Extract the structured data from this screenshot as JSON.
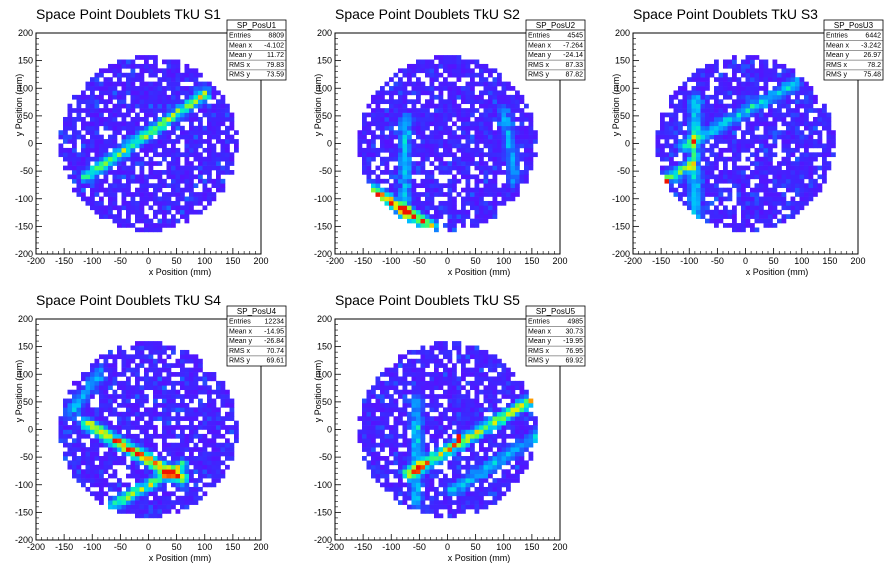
{
  "chart_data": [
    {
      "type": "heatmap",
      "title": "Space Point Doublets TkU S1",
      "xlabel": "x Position (mm)",
      "ylabel": "y Position (mm)",
      "xlim": [
        -200,
        200
      ],
      "ylim": [
        -200,
        200
      ],
      "xticks": [
        "-200",
        "-150",
        "-100",
        "-50",
        "0",
        "50",
        "100",
        "150",
        "200"
      ],
      "yticks": [
        "-200",
        "-150",
        "-100",
        "-50",
        "0",
        "50",
        "100",
        "150",
        "200"
      ],
      "circle_radius": 160,
      "stats": {
        "name": "SP_PosU1",
        "rows": [
          {
            "label": "Entries",
            "value": "8809"
          },
          {
            "label": "Mean x",
            "value": "-4.102"
          },
          {
            "label": "Mean y",
            "value": "11.72"
          },
          {
            "label": "RMS x",
            "value": "79.83"
          },
          {
            "label": "RMS y",
            "value": "73.59"
          }
        ]
      },
      "features": [
        {
          "kind": "stripe",
          "from": [
            -110,
            -60
          ],
          "to": [
            100,
            90
          ],
          "peak": 0.6
        }
      ]
    },
    {
      "type": "heatmap",
      "title": "Space Point Doublets TkU S2",
      "xlabel": "x Position (mm)",
      "ylabel": "y Position (mm)",
      "xlim": [
        -200,
        200
      ],
      "ylim": [
        -200,
        200
      ],
      "xticks": [
        "-200",
        "-150",
        "-100",
        "-50",
        "0",
        "50",
        "100",
        "150",
        "200"
      ],
      "yticks": [
        "-200",
        "-150",
        "-100",
        "-50",
        "0",
        "50",
        "100",
        "150",
        "200"
      ],
      "circle_radius": 160,
      "stats": {
        "name": "SP_PosU2",
        "rows": [
          {
            "label": "Entries",
            "value": "4545"
          },
          {
            "label": "Mean x",
            "value": "-7.264"
          },
          {
            "label": "Mean y",
            "value": "-24.14"
          },
          {
            "label": "RMS x",
            "value": "87.33"
          },
          {
            "label": "RMS y",
            "value": "87.82"
          }
        ]
      },
      "features": [
        {
          "kind": "stripe",
          "from": [
            -140,
            -80
          ],
          "to": [
            -30,
            -150
          ],
          "peak": 0.85
        },
        {
          "kind": "stripe",
          "from": [
            -75,
            40
          ],
          "to": [
            -75,
            -140
          ],
          "peak": 0.35
        },
        {
          "kind": "stripe",
          "from": [
            100,
            60
          ],
          "to": [
            120,
            -60
          ],
          "peak": 0.3
        }
      ]
    },
    {
      "type": "heatmap",
      "title": "Space Point Doublets TkU S3",
      "xlabel": "x Position (mm)",
      "ylabel": "y Position (mm)",
      "xlim": [
        -200,
        200
      ],
      "ylim": [
        -200,
        200
      ],
      "xticks": [
        "-200",
        "-150",
        "-100",
        "-50",
        "0",
        "50",
        "100",
        "150",
        "200"
      ],
      "yticks": [
        "-200",
        "-150",
        "-100",
        "-50",
        "0",
        "50",
        "100",
        "150",
        "200"
      ],
      "circle_radius": 160,
      "stats": {
        "name": "SP_PosU3",
        "rows": [
          {
            "label": "Entries",
            "value": "6442"
          },
          {
            "label": "Mean x",
            "value": "-3.242"
          },
          {
            "label": "Mean y",
            "value": "26.97"
          },
          {
            "label": "RMS x",
            "value": "78.2"
          },
          {
            "label": "RMS y",
            "value": "75.48"
          }
        ]
      },
      "features": [
        {
          "kind": "stripe",
          "from": [
            -90,
            80
          ],
          "to": [
            -90,
            -140
          ],
          "peak": 0.45
        },
        {
          "kind": "stripe",
          "from": [
            -110,
            -5
          ],
          "to": [
            90,
            110
          ],
          "peak": 0.4
        },
        {
          "kind": "stripe",
          "from": [
            -150,
            -70
          ],
          "to": [
            -100,
            -40
          ],
          "peak": 0.6
        },
        {
          "kind": "hot",
          "at": [
            -143,
            -68
          ],
          "peak": 1.0
        }
      ]
    },
    {
      "type": "heatmap",
      "title": "Space Point Doublets TkU S4",
      "xlabel": "x Position (mm)",
      "ylabel": "y Position (mm)",
      "xlim": [
        -200,
        200
      ],
      "ylim": [
        -200,
        200
      ],
      "xticks": [
        "-200",
        "-150",
        "-100",
        "-50",
        "0",
        "50",
        "100",
        "150",
        "200"
      ],
      "yticks": [
        "-200",
        "-150",
        "-100",
        "-50",
        "0",
        "50",
        "100",
        "150",
        "200"
      ],
      "circle_radius": 160,
      "stats": {
        "name": "SP_PosU4",
        "rows": [
          {
            "label": "Entries",
            "value": "12234"
          },
          {
            "label": "Mean x",
            "value": "-14.95"
          },
          {
            "label": "Mean y",
            "value": "-26.84"
          },
          {
            "label": "RMS x",
            "value": "70.74"
          },
          {
            "label": "RMS y",
            "value": "69.61"
          }
        ]
      },
      "features": [
        {
          "kind": "stripe",
          "from": [
            -110,
            10
          ],
          "to": [
            60,
            -90
          ],
          "peak": 0.85
        },
        {
          "kind": "stripe",
          "from": [
            -60,
            -135
          ],
          "to": [
            60,
            -65
          ],
          "peak": 0.6
        },
        {
          "kind": "stripe",
          "from": [
            -140,
            30
          ],
          "to": [
            -90,
            100
          ],
          "peak": 0.3
        }
      ]
    },
    {
      "type": "heatmap",
      "title": "Space Point Doublets TkU S5",
      "xlabel": "x Position (mm)",
      "ylabel": "y Position (mm)",
      "xlim": [
        -200,
        200
      ],
      "ylim": [
        -200,
        200
      ],
      "xticks": [
        "-200",
        "-150",
        "-100",
        "-50",
        "0",
        "50",
        "100",
        "150",
        "200"
      ],
      "yticks": [
        "-200",
        "-150",
        "-100",
        "-50",
        "0",
        "50",
        "100",
        "150",
        "200"
      ],
      "circle_radius": 160,
      "stats": {
        "name": "SP_PosU5",
        "rows": [
          {
            "label": "Entries",
            "value": "4985"
          },
          {
            "label": "Mean x",
            "value": "30.73"
          },
          {
            "label": "Mean y",
            "value": "-19.95"
          },
          {
            "label": "RMS x",
            "value": "76.95"
          },
          {
            "label": "RMS y",
            "value": "69.92"
          }
        ]
      },
      "features": [
        {
          "kind": "stripe",
          "from": [
            -70,
            -80
          ],
          "to": [
            160,
            60
          ],
          "peak": 0.75
        },
        {
          "kind": "stripe",
          "from": [
            -55,
            50
          ],
          "to": [
            -55,
            -130
          ],
          "peak": 0.35
        },
        {
          "kind": "stripe",
          "from": [
            10,
            -110
          ],
          "to": [
            160,
            -10
          ],
          "peak": 0.35
        },
        {
          "kind": "hot",
          "at": [
            20,
            -15
          ],
          "peak": 1.0
        }
      ]
    }
  ]
}
